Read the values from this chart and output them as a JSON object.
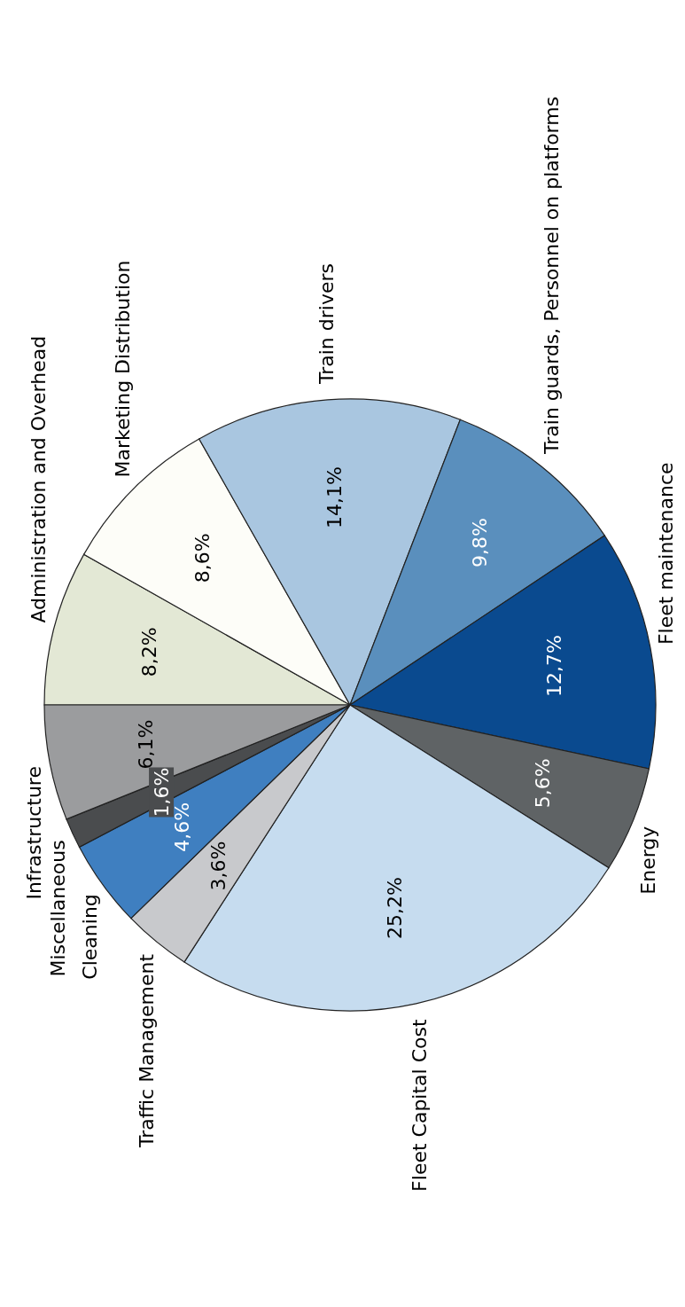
{
  "chart_data": {
    "type": "pie",
    "categories": [
      "Administration and Overhead",
      "Marketing Distribution",
      "Train drivers",
      "Train guards, Personnel on platforms",
      "Fleet maintenance",
      "Energy",
      "Fleet Capital Cost",
      "Traffic Management",
      "Cleaning",
      "Miscellaneous",
      "Infrastructure"
    ],
    "values": [
      8.2,
      8.6,
      14.1,
      9.8,
      12.7,
      5.6,
      25.2,
      3.6,
      4.6,
      1.6,
      6.1
    ],
    "value_labels": [
      "8,2%",
      "8,6%",
      "14,1%",
      "9,8%",
      "12,7%",
      "5,6%",
      "25,2%",
      "3,6%",
      "4,6%",
      "1,6%",
      "6,1%"
    ],
    "colors": [
      "#e3e8d5",
      "#fdfdf8",
      "#a9c6e0",
      "#5a8fbd",
      "#0a4a8f",
      "#5f6365",
      "#c6dcef",
      "#c8c9cc",
      "#3f7fc0",
      "#4a4c4e",
      "#9b9c9e"
    ]
  }
}
